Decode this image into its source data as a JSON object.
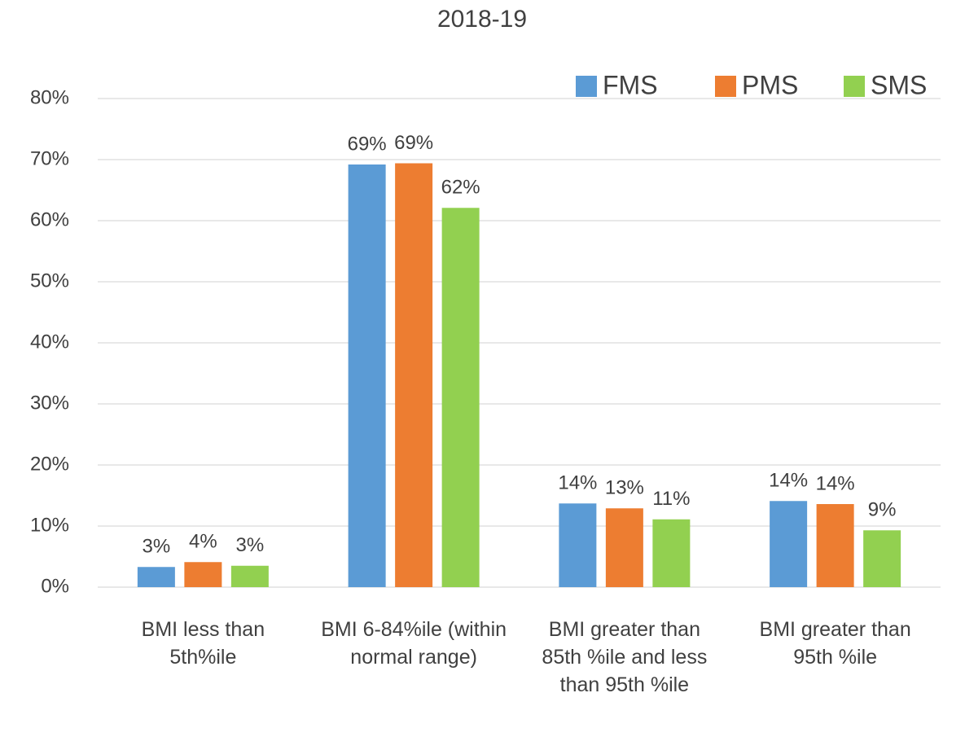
{
  "chart_data": {
    "type": "bar",
    "title": "2018-19",
    "categories": [
      "BMI less than 5th%ile",
      "BMI  6-84%ile (within normal range)",
      "BMI greater than 85th %ile and less than 95th %ile",
      "BMI greater than 95th %ile"
    ],
    "series": [
      {
        "name": "FMS",
        "color": "#5b9bd5",
        "values": [
          3.3,
          69.2,
          13.7,
          14.1
        ],
        "value_labels": [
          "3%",
          "69%",
          "14%",
          "14%"
        ]
      },
      {
        "name": "PMS",
        "color": "#ed7d31",
        "values": [
          4.1,
          69.4,
          12.9,
          13.6
        ],
        "value_labels": [
          "4%",
          "69%",
          "13%",
          "14%"
        ]
      },
      {
        "name": "SMS",
        "color": "#92d050",
        "values": [
          3.5,
          62.1,
          11.1,
          9.3
        ],
        "value_labels": [
          "3%",
          "62%",
          "11%",
          "9%"
        ]
      }
    ],
    "ylim": [
      0,
      80
    ],
    "yticks": [
      {
        "value": 0,
        "label": "0%"
      },
      {
        "value": 10,
        "label": "10%"
      },
      {
        "value": 20,
        "label": "20%"
      },
      {
        "value": 30,
        "label": "30%"
      },
      {
        "value": 40,
        "label": "40%"
      },
      {
        "value": 50,
        "label": "50%"
      },
      {
        "value": 60,
        "label": "60%"
      },
      {
        "value": 70,
        "label": "70%"
      },
      {
        "value": 80,
        "label": "80%"
      }
    ],
    "grid": true,
    "legend": "top-right"
  }
}
